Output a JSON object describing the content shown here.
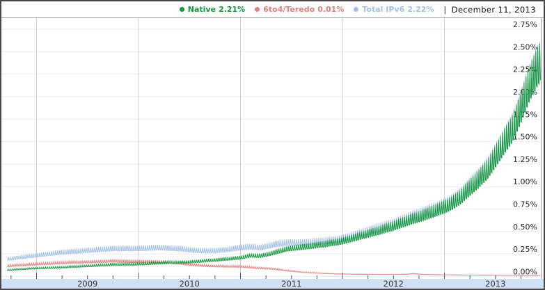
{
  "legend": {
    "items": [
      {
        "id": "native",
        "label": "Native",
        "value": "2.21%",
        "color": "#13973e"
      },
      {
        "id": "6to4-teredo",
        "label": "6to4/Teredo",
        "value": "0.01%",
        "color": "#e27f7e"
      },
      {
        "id": "total-ipv6",
        "label": "Total IPv6",
        "value": "2.22%",
        "color": "#a2c0e4"
      }
    ],
    "separator": "|",
    "date": "December 11, 2013"
  },
  "chart_data": {
    "type": "line",
    "title": "",
    "xlabel": "",
    "ylabel": "",
    "legend_position": "top",
    "grid": true,
    "x_range_years": [
      2008.71,
      2013.945
    ],
    "x_tick_years": [
      "2009",
      "2010",
      "2011",
      "2012",
      "2013"
    ],
    "x_minor_tick_interval_years": 0.25,
    "y_range_percent": [
      0,
      2.88
    ],
    "y_ticks": [
      {
        "v": 0.0,
        "label": "0.00%"
      },
      {
        "v": 0.25,
        "label": "0.25%"
      },
      {
        "v": 0.5,
        "label": "0.50%"
      },
      {
        "v": 0.75,
        "label": "0.75%"
      },
      {
        "v": 1.0,
        "label": "1.00%"
      },
      {
        "v": 1.25,
        "label": "1.25%"
      },
      {
        "v": 1.5,
        "label": "1.50%"
      },
      {
        "v": 1.75,
        "label": "1.75%"
      },
      {
        "v": 2.0,
        "label": "2.00%"
      },
      {
        "v": 2.25,
        "label": "2.25%"
      },
      {
        "v": 2.5,
        "label": "2.50%"
      },
      {
        "v": 2.75,
        "label": "2.75%"
      }
    ],
    "weekly_oscillation": {
      "note": "traffic share dips on weekdays and spikes on weekends, weekly period",
      "sample_multipliers": [
        0.94,
        0.93,
        1.12
      ],
      "samples_per_year": 156
    },
    "series": [
      {
        "name": "Total IPv6",
        "color": "#a2c0e4",
        "current_value_percent": 2.22,
        "points": [
          [
            2008.71,
            0.19
          ],
          [
            2008.92,
            0.22
          ],
          [
            2009.0,
            0.23
          ],
          [
            2009.25,
            0.265
          ],
          [
            2009.5,
            0.285
          ],
          [
            2009.75,
            0.305
          ],
          [
            2010.0,
            0.305
          ],
          [
            2010.2,
            0.315
          ],
          [
            2010.4,
            0.305
          ],
          [
            2010.55,
            0.285
          ],
          [
            2010.7,
            0.28
          ],
          [
            2010.85,
            0.29
          ],
          [
            2011.0,
            0.315
          ],
          [
            2011.1,
            0.325
          ],
          [
            2011.2,
            0.315
          ],
          [
            2011.33,
            0.35
          ],
          [
            2011.45,
            0.37
          ],
          [
            2011.6,
            0.37
          ],
          [
            2011.75,
            0.38
          ],
          [
            2011.9,
            0.395
          ],
          [
            2012.0,
            0.415
          ],
          [
            2012.17,
            0.465
          ],
          [
            2012.33,
            0.52
          ],
          [
            2012.5,
            0.575
          ],
          [
            2012.67,
            0.645
          ],
          [
            2012.83,
            0.705
          ],
          [
            2013.0,
            0.775
          ],
          [
            2013.08,
            0.82
          ],
          [
            2013.17,
            0.895
          ],
          [
            2013.25,
            0.985
          ],
          [
            2013.33,
            1.07
          ],
          [
            2013.42,
            1.18
          ],
          [
            2013.5,
            1.32
          ],
          [
            2013.58,
            1.47
          ],
          [
            2013.67,
            1.63
          ],
          [
            2013.75,
            1.85
          ],
          [
            2013.83,
            2.1
          ],
          [
            2013.9,
            2.27
          ],
          [
            2013.945,
            2.35
          ]
        ]
      },
      {
        "name": "6to4/Teredo",
        "color": "#e27f7e",
        "current_value_percent": 0.01,
        "points": [
          [
            2008.71,
            0.115
          ],
          [
            2009.0,
            0.135
          ],
          [
            2009.25,
            0.15
          ],
          [
            2009.5,
            0.16
          ],
          [
            2009.75,
            0.17
          ],
          [
            2010.0,
            0.165
          ],
          [
            2010.25,
            0.16
          ],
          [
            2010.4,
            0.145
          ],
          [
            2010.55,
            0.125
          ],
          [
            2010.7,
            0.115
          ],
          [
            2010.85,
            0.11
          ],
          [
            2011.0,
            0.108
          ],
          [
            2011.15,
            0.095
          ],
          [
            2011.3,
            0.085
          ],
          [
            2011.45,
            0.065
          ],
          [
            2011.6,
            0.048
          ],
          [
            2011.75,
            0.038
          ],
          [
            2011.9,
            0.03
          ],
          [
            2012.0,
            0.027
          ],
          [
            2012.25,
            0.023
          ],
          [
            2012.5,
            0.022
          ],
          [
            2012.63,
            0.024
          ],
          [
            2012.7,
            0.032
          ],
          [
            2012.77,
            0.023
          ],
          [
            2013.0,
            0.018
          ],
          [
            2013.4,
            0.014
          ],
          [
            2013.7,
            0.012
          ],
          [
            2013.945,
            0.01
          ]
        ]
      },
      {
        "name": "Native",
        "color": "#13973e",
        "current_value_percent": 2.21,
        "points": [
          [
            2008.71,
            0.07
          ],
          [
            2008.92,
            0.085
          ],
          [
            2009.0,
            0.09
          ],
          [
            2009.25,
            0.1
          ],
          [
            2009.5,
            0.115
          ],
          [
            2009.75,
            0.13
          ],
          [
            2010.0,
            0.135
          ],
          [
            2010.25,
            0.15
          ],
          [
            2010.5,
            0.16
          ],
          [
            2010.75,
            0.18
          ],
          [
            2011.0,
            0.205
          ],
          [
            2011.1,
            0.23
          ],
          [
            2011.2,
            0.225
          ],
          [
            2011.33,
            0.26
          ],
          [
            2011.45,
            0.3
          ],
          [
            2011.6,
            0.32
          ],
          [
            2011.75,
            0.34
          ],
          [
            2011.9,
            0.365
          ],
          [
            2012.0,
            0.385
          ],
          [
            2012.17,
            0.44
          ],
          [
            2012.33,
            0.49
          ],
          [
            2012.5,
            0.55
          ],
          [
            2012.67,
            0.62
          ],
          [
            2012.83,
            0.68
          ],
          [
            2013.0,
            0.755
          ],
          [
            2013.08,
            0.8
          ],
          [
            2013.17,
            0.875
          ],
          [
            2013.25,
            0.965
          ],
          [
            2013.33,
            1.05
          ],
          [
            2013.42,
            1.16
          ],
          [
            2013.5,
            1.3
          ],
          [
            2013.58,
            1.45
          ],
          [
            2013.67,
            1.61
          ],
          [
            2013.75,
            1.83
          ],
          [
            2013.83,
            2.08
          ],
          [
            2013.9,
            2.25
          ],
          [
            2013.945,
            2.33
          ]
        ]
      }
    ],
    "colors": {
      "axis_band": "#cfe0f4",
      "h_gridline": "#e7ebf5",
      "v_gridline": "#cccccc",
      "plot_border": "#9a9a9a",
      "tick": "#555555",
      "y_label": "#222222",
      "x_label": "#333333"
    }
  }
}
